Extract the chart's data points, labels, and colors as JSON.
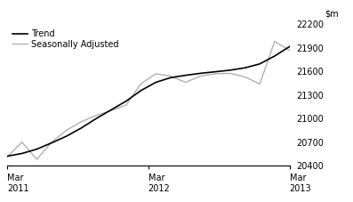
{
  "ylim": [
    20400,
    22200
  ],
  "yticks": [
    20400,
    20700,
    21000,
    21300,
    21600,
    21900,
    22200
  ],
  "xtick_labels": [
    "Mar\n2011",
    "Mar\n2012",
    "Mar\n2013"
  ],
  "xtick_positions": [
    0,
    4,
    8
  ],
  "trend_color": "#000000",
  "sa_color": "#b0b0b0",
  "trend_label": "Trend",
  "sa_label": "Seasonally Adjusted",
  "trend_linewidth": 1.2,
  "sa_linewidth": 1.0,
  "trend_values": [
    20520,
    20555,
    20610,
    20690,
    20775,
    20880,
    21000,
    21110,
    21220,
    21355,
    21460,
    21520,
    21550,
    21575,
    21595,
    21615,
    21645,
    21695,
    21795,
    21915
  ],
  "sa_values": [
    20510,
    20700,
    20480,
    20700,
    20850,
    20960,
    21040,
    21100,
    21170,
    21440,
    21570,
    21540,
    21460,
    21540,
    21570,
    21575,
    21530,
    21440,
    21980,
    21870
  ],
  "background_color": "#ffffff",
  "legend_fontsize": 7,
  "axis_fontsize": 7,
  "tick_fontsize": 7
}
